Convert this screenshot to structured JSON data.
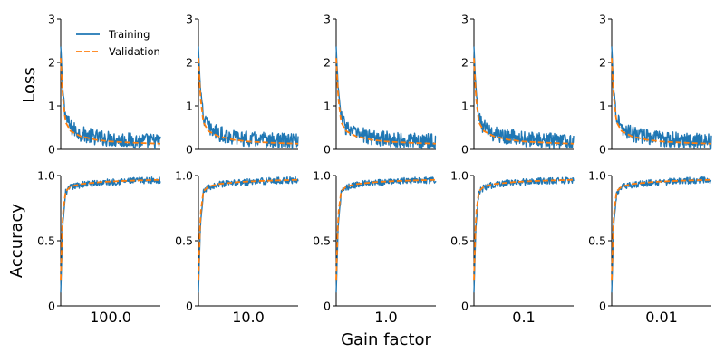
{
  "chart_data": {
    "type": "line",
    "layout": "2x5 small multiples",
    "x_title": "Gain factor",
    "row_labels": [
      "Loss",
      "Accuracy"
    ],
    "column_labels": [
      "100.0",
      "10.0",
      "1.0",
      "0.1",
      "0.01"
    ],
    "legend": {
      "position": "upper-right of first panel",
      "entries": [
        {
          "name": "Training",
          "style": "solid",
          "color": "#1f77b4"
        },
        {
          "name": "Validation",
          "style": "dashed",
          "color": "#ff7f0e"
        }
      ]
    },
    "rows": [
      {
        "name": "Loss",
        "ylim": [
          0,
          3
        ],
        "yticks": [
          0,
          1,
          2,
          3
        ],
        "ytick_labels": [
          "0",
          "1",
          "2",
          "3"
        ],
        "training_trend": [
          [
            0.0,
            2.35
          ],
          [
            0.02,
            1.4
          ],
          [
            0.05,
            0.75
          ],
          [
            0.1,
            0.5
          ],
          [
            0.2,
            0.36
          ],
          [
            0.35,
            0.28
          ],
          [
            0.5,
            0.24
          ],
          [
            0.75,
            0.2
          ],
          [
            1.0,
            0.18
          ]
        ],
        "training_noise": 0.18,
        "validation": [
          [
            0.0,
            2.1
          ],
          [
            0.02,
            1.2
          ],
          [
            0.05,
            0.62
          ],
          [
            0.1,
            0.42
          ],
          [
            0.2,
            0.3
          ],
          [
            0.35,
            0.22
          ],
          [
            0.5,
            0.18
          ],
          [
            0.75,
            0.15
          ],
          [
            1.0,
            0.13
          ]
        ]
      },
      {
        "name": "Accuracy",
        "ylim": [
          0,
          1.0
        ],
        "yticks": [
          0,
          0.5,
          1.0
        ],
        "ytick_labels": [
          "0",
          "0.5",
          "1.0"
        ],
        "training_trend": [
          [
            0.0,
            0.1
          ],
          [
            0.02,
            0.62
          ],
          [
            0.05,
            0.87
          ],
          [
            0.1,
            0.91
          ],
          [
            0.2,
            0.93
          ],
          [
            0.4,
            0.945
          ],
          [
            0.6,
            0.955
          ],
          [
            0.8,
            0.962
          ],
          [
            1.0,
            0.965
          ]
        ],
        "training_noise": 0.025,
        "validation": [
          [
            0.0,
            0.2
          ],
          [
            0.02,
            0.7
          ],
          [
            0.05,
            0.88
          ],
          [
            0.1,
            0.915
          ],
          [
            0.2,
            0.935
          ],
          [
            0.4,
            0.95
          ],
          [
            0.6,
            0.958
          ],
          [
            0.8,
            0.963
          ],
          [
            1.0,
            0.967
          ]
        ]
      }
    ],
    "colors": {
      "training": "#1f77b4",
      "validation": "#ff7f0e"
    }
  }
}
